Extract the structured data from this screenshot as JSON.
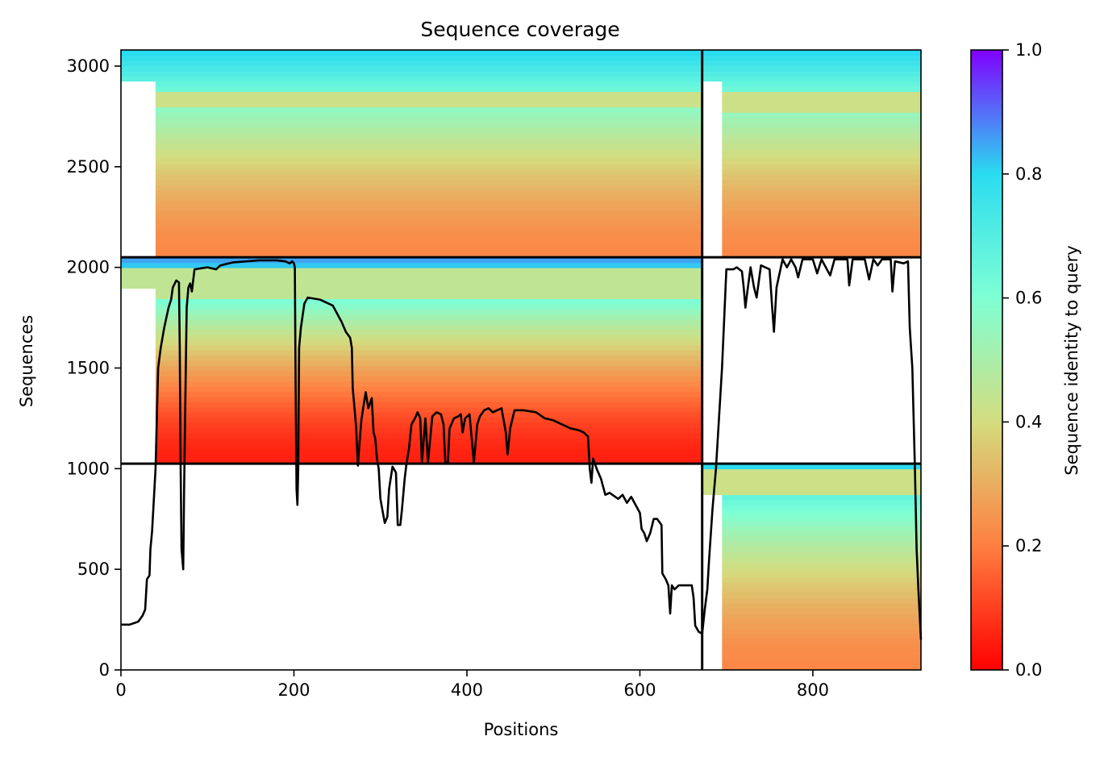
{
  "chart_data": {
    "type": "heatmap",
    "title": "Sequence coverage",
    "xlabel": "Positions",
    "ylabel": "Sequences",
    "xlim": [
      0,
      925
    ],
    "ylim": [
      0,
      3080
    ],
    "xticks": [
      0,
      200,
      400,
      600,
      800
    ],
    "yticks": [
      0,
      500,
      1000,
      1500,
      2000,
      2500,
      3000
    ],
    "colorbar": {
      "label": "Sequence identity to query",
      "range": [
        0.0,
        1.0
      ],
      "ticks": [
        "0.0",
        "0.2",
        "0.4",
        "0.6",
        "0.8",
        "1.0"
      ],
      "colormap": "rainbow",
      "stops": [
        "#ff0000",
        "#ff7f40",
        "#d4dc7f",
        "#7fffd4",
        "#2adcf0",
        "#8000ff"
      ]
    },
    "blocks": [
      {
        "x": [
          0,
          672
        ],
        "y": [
          0,
          1025
        ],
        "filled": false
      },
      {
        "x": [
          672,
          925
        ],
        "y": [
          0,
          1025
        ],
        "filled": true,
        "rows_from_x": 695,
        "identity_bottom": 0.22,
        "identity_top": 0.8,
        "band": {
          "y": [
            860,
            1000
          ],
          "identity": 0.42
        }
      },
      {
        "x": [
          0,
          672
        ],
        "y": [
          1025,
          2050
        ],
        "filled": true,
        "rows_from_x": 40,
        "identity_bottom": 0.05,
        "identity_top": 0.85,
        "band": {
          "y": [
            1850,
            2000
          ],
          "identity": 0.45
        }
      },
      {
        "x": [
          672,
          925
        ],
        "y": [
          1025,
          2050
        ],
        "filled": false
      },
      {
        "x": [
          0,
          672
        ],
        "y": [
          2050,
          3080
        ],
        "filled": true,
        "rows_from_x": 40,
        "identity_bottom": 0.22,
        "identity_top": 0.8,
        "band": {
          "y": [
            2800,
            2880
          ],
          "identity": 0.42
        }
      },
      {
        "x": [
          672,
          925
        ],
        "y": [
          2050,
          3080
        ],
        "filled": true,
        "rows_from_x": 695,
        "identity_bottom": 0.22,
        "identity_top": 0.8,
        "band": {
          "y": [
            2780,
            2880
          ],
          "identity": 0.42
        }
      }
    ],
    "block_dividers": {
      "x": [
        672
      ],
      "y": [
        1025,
        2050
      ]
    },
    "coverage_line": {
      "color": "#000000",
      "points": [
        [
          0,
          225
        ],
        [
          10,
          225
        ],
        [
          20,
          240
        ],
        [
          25,
          270
        ],
        [
          28,
          300
        ],
        [
          30,
          450
        ],
        [
          33,
          470
        ],
        [
          34,
          600
        ],
        [
          36,
          690
        ],
        [
          40,
          1000
        ],
        [
          43,
          1500
        ],
        [
          46,
          1600
        ],
        [
          50,
          1700
        ],
        [
          55,
          1800
        ],
        [
          58,
          1840
        ],
        [
          60,
          1900
        ],
        [
          64,
          1935
        ],
        [
          67,
          1925
        ],
        [
          68,
          1600
        ],
        [
          69,
          1000
        ],
        [
          70,
          600
        ],
        [
          72,
          500
        ],
        [
          73,
          900
        ],
        [
          75,
          1500
        ],
        [
          76,
          1800
        ],
        [
          78,
          1900
        ],
        [
          80,
          1920
        ],
        [
          82,
          1880
        ],
        [
          85,
          1990
        ],
        [
          100,
          2000
        ],
        [
          110,
          1990
        ],
        [
          115,
          2010
        ],
        [
          130,
          2025
        ],
        [
          160,
          2035
        ],
        [
          180,
          2035
        ],
        [
          190,
          2030
        ],
        [
          195,
          2020
        ],
        [
          198,
          2030
        ],
        [
          200,
          2020
        ],
        [
          201,
          2000
        ],
        [
          202,
          1400
        ],
        [
          203,
          900
        ],
        [
          204,
          820
        ],
        [
          205,
          1000
        ],
        [
          206,
          1600
        ],
        [
          208,
          1700
        ],
        [
          212,
          1820
        ],
        [
          216,
          1850
        ],
        [
          230,
          1840
        ],
        [
          245,
          1810
        ],
        [
          255,
          1730
        ],
        [
          260,
          1680
        ],
        [
          265,
          1650
        ],
        [
          267,
          1600
        ],
        [
          268,
          1400
        ],
        [
          270,
          1300
        ],
        [
          272,
          1200
        ],
        [
          273,
          1100
        ],
        [
          274,
          1015
        ],
        [
          275,
          1080
        ],
        [
          278,
          1240
        ],
        [
          280,
          1300
        ],
        [
          283,
          1380
        ],
        [
          286,
          1300
        ],
        [
          290,
          1350
        ],
        [
          292,
          1180
        ],
        [
          294,
          1150
        ],
        [
          296,
          1050
        ],
        [
          298,
          1000
        ],
        [
          300,
          850
        ],
        [
          305,
          730
        ],
        [
          308,
          760
        ],
        [
          310,
          900
        ],
        [
          314,
          1010
        ],
        [
          318,
          980
        ],
        [
          320,
          720
        ],
        [
          323,
          720
        ],
        [
          325,
          800
        ],
        [
          328,
          950
        ],
        [
          330,
          1020
        ],
        [
          333,
          1100
        ],
        [
          336,
          1220
        ],
        [
          340,
          1250
        ],
        [
          343,
          1280
        ],
        [
          346,
          1250
        ],
        [
          348,
          1030
        ],
        [
          352,
          1250
        ],
        [
          355,
          1030
        ],
        [
          360,
          1260
        ],
        [
          365,
          1280
        ],
        [
          370,
          1270
        ],
        [
          373,
          1220
        ],
        [
          375,
          1030
        ],
        [
          378,
          1030
        ],
        [
          380,
          1200
        ],
        [
          385,
          1250
        ],
        [
          390,
          1260
        ],
        [
          393,
          1270
        ],
        [
          395,
          1180
        ],
        [
          398,
          1250
        ],
        [
          403,
          1270
        ],
        [
          408,
          1030
        ],
        [
          412,
          1220
        ],
        [
          415,
          1260
        ],
        [
          420,
          1290
        ],
        [
          425,
          1300
        ],
        [
          430,
          1280
        ],
        [
          435,
          1290
        ],
        [
          440,
          1300
        ],
        [
          445,
          1180
        ],
        [
          447,
          1070
        ],
        [
          450,
          1200
        ],
        [
          455,
          1290
        ],
        [
          465,
          1290
        ],
        [
          480,
          1280
        ],
        [
          490,
          1250
        ],
        [
          500,
          1240
        ],
        [
          510,
          1220
        ],
        [
          520,
          1200
        ],
        [
          530,
          1190
        ],
        [
          535,
          1180
        ],
        [
          540,
          1160
        ],
        [
          542,
          1000
        ],
        [
          544,
          930
        ],
        [
          546,
          1050
        ],
        [
          550,
          1000
        ],
        [
          555,
          950
        ],
        [
          560,
          870
        ],
        [
          565,
          880
        ],
        [
          575,
          850
        ],
        [
          580,
          870
        ],
        [
          585,
          830
        ],
        [
          590,
          860
        ],
        [
          595,
          820
        ],
        [
          600,
          780
        ],
        [
          602,
          700
        ],
        [
          605,
          680
        ],
        [
          608,
          640
        ],
        [
          612,
          680
        ],
        [
          616,
          750
        ],
        [
          620,
          750
        ],
        [
          625,
          720
        ],
        [
          626,
          480
        ],
        [
          630,
          450
        ],
        [
          633,
          420
        ],
        [
          635,
          280
        ],
        [
          637,
          420
        ],
        [
          640,
          400
        ],
        [
          645,
          420
        ],
        [
          660,
          420
        ],
        [
          662,
          360
        ],
        [
          664,
          220
        ],
        [
          668,
          190
        ],
        [
          672,
          180
        ],
        [
          675,
          300
        ],
        [
          678,
          400
        ],
        [
          680,
          550
        ],
        [
          684,
          800
        ],
        [
          688,
          1000
        ],
        [
          695,
          1500
        ],
        [
          700,
          1990
        ],
        [
          708,
          1990
        ],
        [
          712,
          2000
        ],
        [
          718,
          1980
        ],
        [
          720,
          1900
        ],
        [
          722,
          1800
        ],
        [
          724,
          1870
        ],
        [
          728,
          2000
        ],
        [
          732,
          1900
        ],
        [
          735,
          1850
        ],
        [
          740,
          2010
        ],
        [
          750,
          1990
        ],
        [
          753,
          1800
        ],
        [
          755,
          1680
        ],
        [
          758,
          1900
        ],
        [
          765,
          2040
        ],
        [
          770,
          2000
        ],
        [
          775,
          2040
        ],
        [
          780,
          2000
        ],
        [
          783,
          1950
        ],
        [
          788,
          2040
        ],
        [
          800,
          2040
        ],
        [
          805,
          1970
        ],
        [
          810,
          2040
        ],
        [
          820,
          1960
        ],
        [
          825,
          2040
        ],
        [
          840,
          2040
        ],
        [
          842,
          1910
        ],
        [
          846,
          2040
        ],
        [
          860,
          2040
        ],
        [
          865,
          1940
        ],
        [
          870,
          2040
        ],
        [
          875,
          2010
        ],
        [
          880,
          2040
        ],
        [
          890,
          2040
        ],
        [
          892,
          1880
        ],
        [
          895,
          2030
        ],
        [
          905,
          2020
        ],
        [
          910,
          2030
        ],
        [
          912,
          1700
        ],
        [
          915,
          1500
        ],
        [
          918,
          1000
        ],
        [
          920,
          600
        ],
        [
          922,
          400
        ],
        [
          925,
          150
        ]
      ]
    }
  }
}
